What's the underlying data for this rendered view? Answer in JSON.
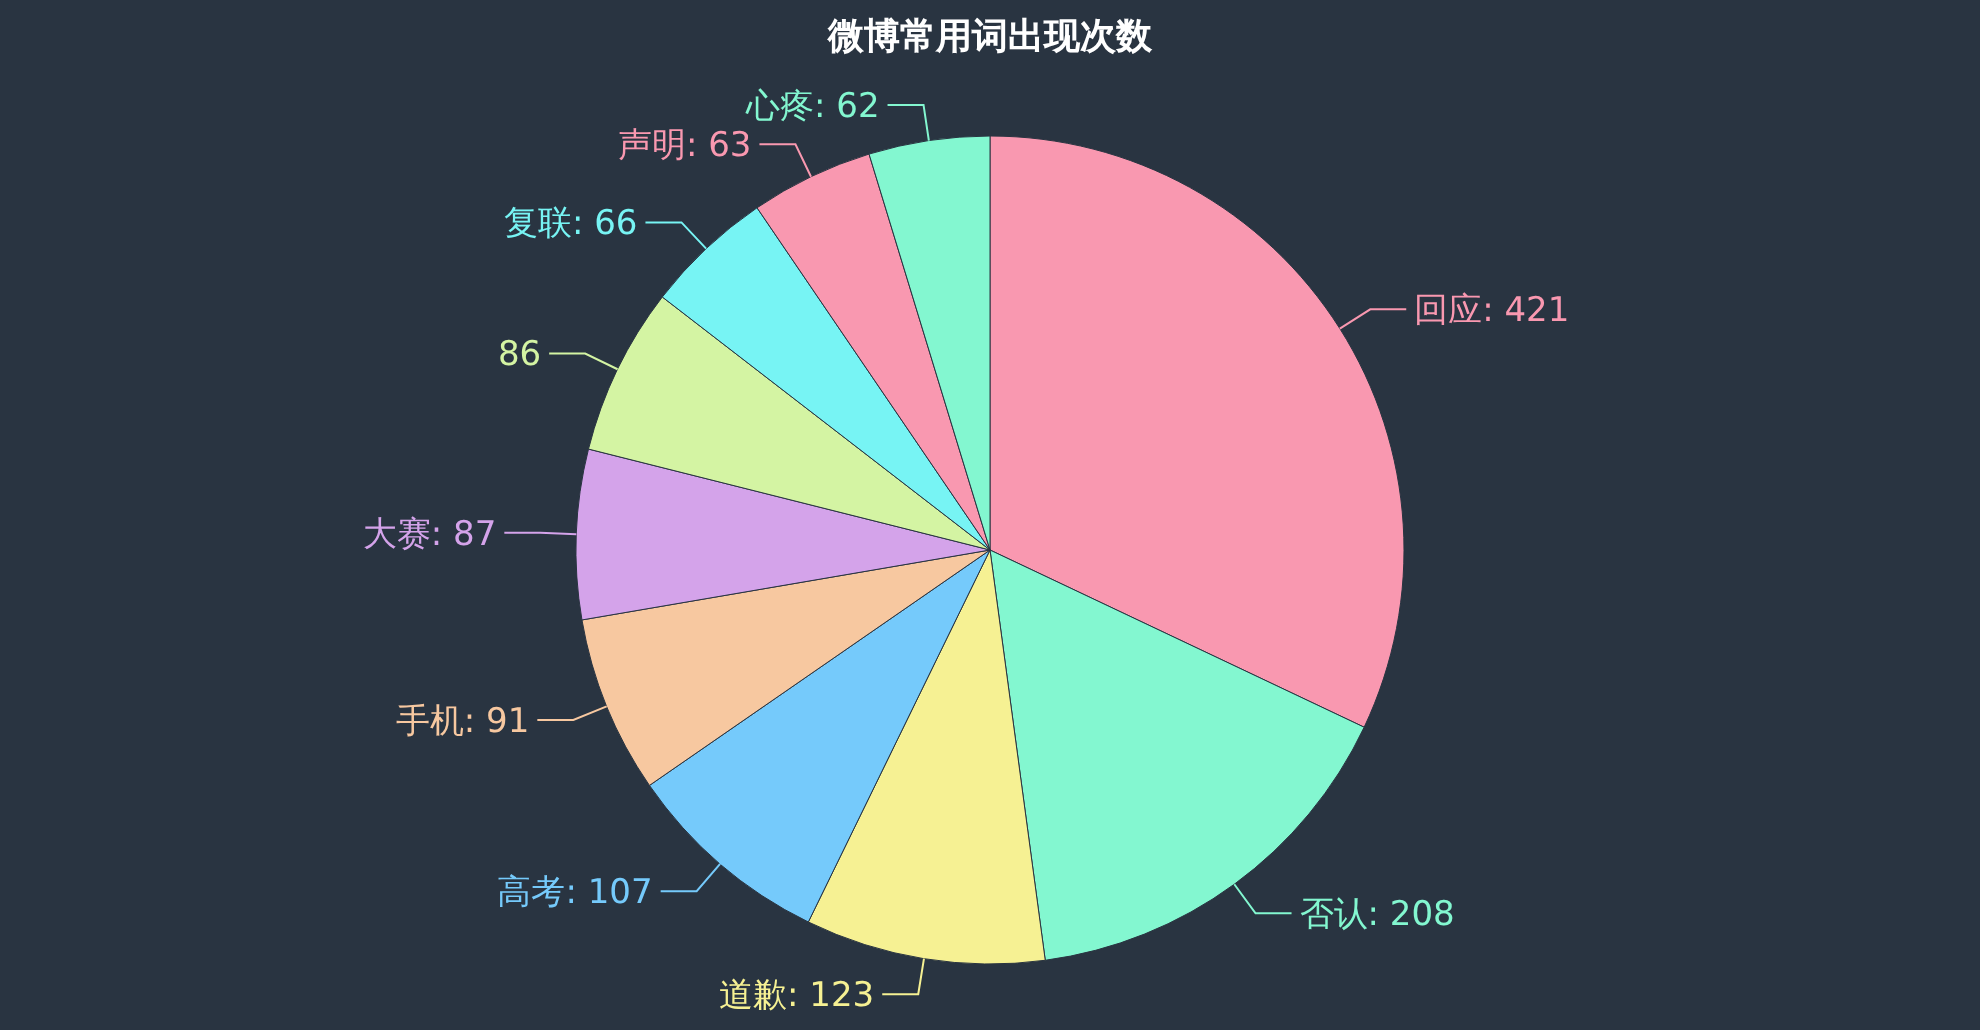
{
  "chart_data": {
    "type": "pie",
    "title": "微博常用词出现次数",
    "categories": [
      "回应",
      "否认",
      "道歉",
      "高考",
      "手机",
      "大赛",
      null,
      "复联",
      "声明",
      "心疼"
    ],
    "values": [
      421,
      208,
      123,
      107,
      91,
      87,
      86,
      66,
      63,
      62
    ],
    "value_labels": [
      ": 421",
      ": 208",
      ": 123",
      ": 107",
      ": 91",
      ": 87",
      "86",
      ": 66",
      ": 63",
      ": 62"
    ],
    "colors": [
      "#f998b0",
      "#83f7d0",
      "#f6f193",
      "#75cafb",
      "#f7c8a0",
      "#d4a3ea",
      "#d4f4a3",
      "#77f4f4",
      "#f998b0",
      "#83f7d0"
    ]
  }
}
